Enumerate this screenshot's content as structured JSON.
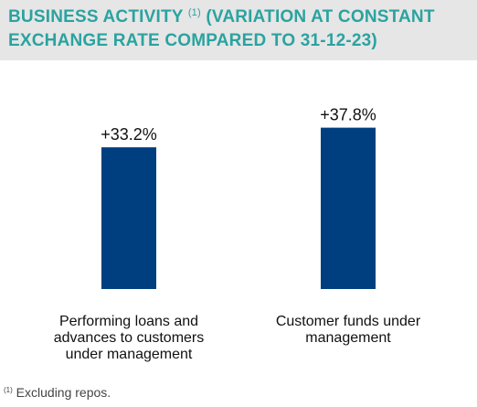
{
  "header": {
    "title_main": "BUSINESS ACTIVITY",
    "title_note_mark": "(1)",
    "title_rest": "(VARIATION AT CONSTANT EXCHANGE RATE COMPARED TO 31-12-23)"
  },
  "chart_data": {
    "type": "bar",
    "categories": [
      [
        "Performing loans and",
        "advances to customers",
        "under management"
      ],
      [
        "Customer funds under",
        "management"
      ]
    ],
    "values": [
      33.2,
      37.8
    ],
    "value_labels": [
      "+33.2%",
      "+37.8%"
    ],
    "unit": "%",
    "title": "BUSINESS ACTIVITY (1) (VARIATION AT CONSTANT EXCHANGE RATE COMPARED TO 31-12-23)",
    "xlabel": "",
    "ylabel": "",
    "ylim": [
      0,
      45
    ],
    "grid": false,
    "bar_color": "#003f7f"
  },
  "footnote": {
    "mark": "(1)",
    "text": "Excluding repos."
  },
  "colors": {
    "title": "#2aa3a0",
    "header_background": "#e6e6e6",
    "bar": "#003f7f",
    "text": "#111111"
  }
}
